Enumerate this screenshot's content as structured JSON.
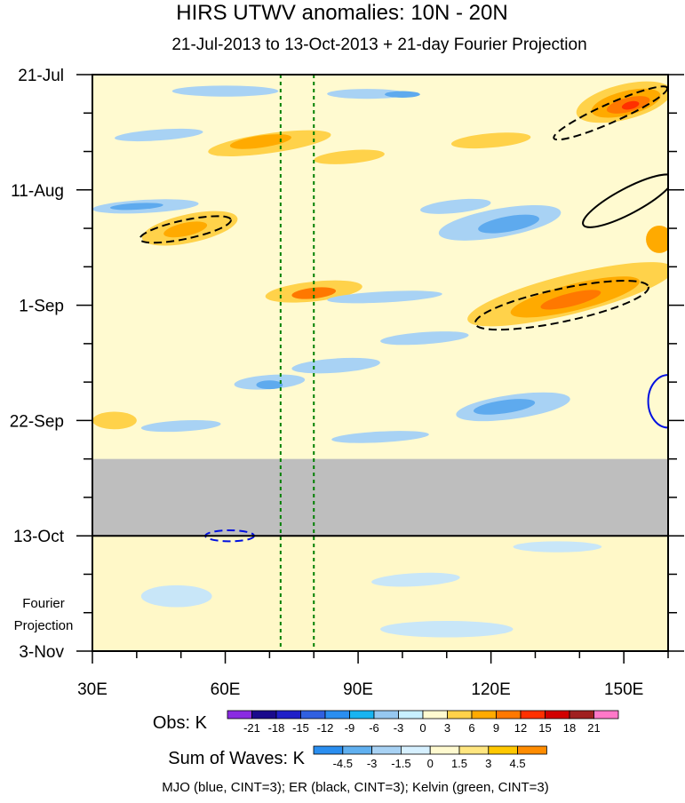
{
  "chart_data": {
    "type": "heatmap",
    "title": "HIRS UTWV anomalies: 10N - 20N",
    "subtitle": "21-Jul-2013 to 13-Oct-2013 + 21-day Fourier Projection",
    "x_axis": {
      "range": [
        30,
        160
      ],
      "ticks": [
        {
          "value": 30,
          "label": "30E"
        },
        {
          "value": 60,
          "label": "60E"
        },
        {
          "value": 90,
          "label": "90E"
        },
        {
          "value": 120,
          "label": "120E"
        },
        {
          "value": 150,
          "label": "150E"
        }
      ]
    },
    "y_axis": {
      "range_days": [
        0,
        105
      ],
      "ticks": [
        {
          "day": 0,
          "label": "21-Jul"
        },
        {
          "day": 21,
          "label": "11-Aug"
        },
        {
          "day": 42,
          "label": "1-Sep"
        },
        {
          "day": 63,
          "label": "22-Sep"
        },
        {
          "day": 84,
          "label": "13-Oct"
        },
        {
          "day": 105,
          "label": "3-Nov"
        }
      ],
      "minor_tick_every_days": 7,
      "forecast_label_lines": [
        "Fourier",
        "Projection"
      ]
    },
    "obs_end_day": 84,
    "missing_data_days": [
      70,
      84
    ],
    "kelvin_lines_lon": [
      72.5,
      80
    ],
    "fields": [
      {
        "kind": "fill",
        "level": 3,
        "lon": 70,
        "day": 12.5,
        "rlon": 14,
        "rday": 1.8,
        "rot": -8
      },
      {
        "kind": "fill",
        "level": 6,
        "lon": 68,
        "day": 12.2,
        "rlon": 7,
        "rday": 1.1,
        "rot": -8
      },
      {
        "kind": "fill",
        "level": 3,
        "lon": 52,
        "day": 28,
        "rlon": 11,
        "rday": 2.6,
        "rot": -12
      },
      {
        "kind": "fill",
        "level": 6,
        "lon": 51,
        "day": 28.2,
        "rlon": 5,
        "rday": 1.2,
        "rot": -12
      },
      {
        "kind": "fill",
        "level": 3,
        "lon": 80,
        "day": 39.5,
        "rlon": 11,
        "rday": 1.8,
        "rot": -6
      },
      {
        "kind": "fill",
        "level": 9,
        "lon": 80,
        "day": 39.8,
        "rlon": 5,
        "rday": 1.0,
        "rot": -6
      },
      {
        "kind": "fill",
        "level": 3,
        "lon": 138,
        "day": 40,
        "rlon": 24,
        "rday": 3.6,
        "rot": -14
      },
      {
        "kind": "fill",
        "level": 6,
        "lon": 139,
        "day": 40.5,
        "rlon": 15,
        "rday": 2.4,
        "rot": -14
      },
      {
        "kind": "fill",
        "level": 9,
        "lon": 138,
        "day": 41,
        "rlon": 7,
        "rday": 1.2,
        "rot": -14
      },
      {
        "kind": "fill",
        "level": 3,
        "lon": 150,
        "day": 5,
        "rlon": 11,
        "rday": 3.2,
        "rot": -14
      },
      {
        "kind": "fill",
        "level": 6,
        "lon": 150.5,
        "day": 5.2,
        "rlon": 8,
        "rday": 2.2,
        "rot": -14
      },
      {
        "kind": "fill",
        "level": 9,
        "lon": 151,
        "day": 5.5,
        "rlon": 5,
        "rday": 1.3,
        "rot": -14
      },
      {
        "kind": "fill",
        "level": 12,
        "lon": 151.5,
        "day": 5.6,
        "rlon": 2,
        "rday": 0.7,
        "rot": -14
      },
      {
        "kind": "fill",
        "level": 6,
        "lon": 158,
        "day": 30,
        "rlon": 3,
        "rday": 2.5,
        "rot": 0
      },
      {
        "kind": "fill",
        "level": 3,
        "lon": 35,
        "day": 63,
        "rlon": 5,
        "rday": 1.6,
        "rot": 0
      },
      {
        "kind": "fill",
        "level": 3,
        "lon": 88,
        "day": 15,
        "rlon": 8,
        "rday": 1.2,
        "rot": -5
      },
      {
        "kind": "fill",
        "level": 3,
        "lon": 120,
        "day": 12,
        "rlon": 9,
        "rday": 1.3,
        "rot": -5
      },
      {
        "kind": "fill",
        "level": -3,
        "lon": 60,
        "day": 3,
        "rlon": 12,
        "rday": 1.0,
        "rot": 0
      },
      {
        "kind": "fill",
        "level": -3,
        "lon": 92,
        "day": 3.5,
        "rlon": 9,
        "rday": 0.9,
        "rot": 0
      },
      {
        "kind": "fill",
        "level": -6,
        "lon": 100,
        "day": 3.6,
        "rlon": 4,
        "rday": 0.6,
        "rot": 0
      },
      {
        "kind": "fill",
        "level": -3,
        "lon": 45,
        "day": 11,
        "rlon": 10,
        "rday": 1.0,
        "rot": -4
      },
      {
        "kind": "fill",
        "level": -3,
        "lon": 42,
        "day": 24,
        "rlon": 12,
        "rday": 1.2,
        "rot": -3
      },
      {
        "kind": "fill",
        "level": -6,
        "lon": 40,
        "day": 24,
        "rlon": 6,
        "rday": 0.6,
        "rot": -3
      },
      {
        "kind": "fill",
        "level": -3,
        "lon": 122,
        "day": 27,
        "rlon": 14,
        "rday": 2.6,
        "rot": -10
      },
      {
        "kind": "fill",
        "level": -6,
        "lon": 124,
        "day": 27.2,
        "rlon": 7,
        "rday": 1.4,
        "rot": -10
      },
      {
        "kind": "fill",
        "level": -3,
        "lon": 112,
        "day": 24,
        "rlon": 8,
        "rday": 1.2,
        "rot": -6
      },
      {
        "kind": "fill",
        "level": -3,
        "lon": 96,
        "day": 40.5,
        "rlon": 13,
        "rday": 1.0,
        "rot": -3
      },
      {
        "kind": "fill",
        "level": -3,
        "lon": 105,
        "day": 48,
        "rlon": 10,
        "rday": 1.1,
        "rot": -4
      },
      {
        "kind": "fill",
        "level": -3,
        "lon": 85,
        "day": 53,
        "rlon": 10,
        "rday": 1.3,
        "rot": -4
      },
      {
        "kind": "fill",
        "level": -3,
        "lon": 70,
        "day": 56,
        "rlon": 8,
        "rday": 1.3,
        "rot": -4
      },
      {
        "kind": "fill",
        "level": -6,
        "lon": 70,
        "day": 56.5,
        "rlon": 3,
        "rday": 0.8,
        "rot": 0
      },
      {
        "kind": "fill",
        "level": -3,
        "lon": 125,
        "day": 60.5,
        "rlon": 13,
        "rday": 2.2,
        "rot": -8
      },
      {
        "kind": "fill",
        "level": -6,
        "lon": 123,
        "day": 60.5,
        "rlon": 7,
        "rday": 1.2,
        "rot": -8
      },
      {
        "kind": "fill",
        "level": -3,
        "lon": 50,
        "day": 64,
        "rlon": 9,
        "rday": 1.0,
        "rot": -3
      },
      {
        "kind": "fill",
        "level": -3,
        "lon": 95,
        "day": 66,
        "rlon": 11,
        "rday": 1.0,
        "rot": -3
      },
      {
        "kind": "fill",
        "level": -1.5,
        "lon": 49,
        "day": 95,
        "rlon": 8,
        "rday": 2.0,
        "rot": 0
      },
      {
        "kind": "fill",
        "level": -1.5,
        "lon": 103,
        "day": 92,
        "rlon": 10,
        "rday": 1.2,
        "rot": -3
      },
      {
        "kind": "fill",
        "level": -1.5,
        "lon": 135,
        "day": 86,
        "rlon": 10,
        "rday": 1.0,
        "rot": 0
      },
      {
        "kind": "fill",
        "level": -1.5,
        "lon": 110,
        "day": 101,
        "rlon": 15,
        "rday": 1.5,
        "rot": 0
      }
    ],
    "contours": [
      {
        "wave": "ER",
        "sign": "neg",
        "lon": 51,
        "day": 28.2,
        "rlon": 10.5,
        "rday": 1.7,
        "rot": -12
      },
      {
        "wave": "ER",
        "sign": "neg",
        "lon": 147,
        "day": 7,
        "rlon": 14,
        "rday": 1.7,
        "rot": -24
      },
      {
        "wave": "ER",
        "sign": "pos",
        "lon": 151,
        "day": 23,
        "rlon": 11.5,
        "rday": 2.3,
        "rot": -28
      },
      {
        "wave": "ER",
        "sign": "neg",
        "lon": 136,
        "day": 42,
        "rlon": 20,
        "rday": 3.0,
        "rot": -12
      },
      {
        "wave": "MJO",
        "sign": "pos",
        "lon": 160,
        "day": 59.5,
        "rlon": 4.5,
        "rday": 4.8,
        "rot": 0
      },
      {
        "wave": "MJO",
        "sign": "neg",
        "lon": 61,
        "day": 84,
        "rlon": 5.5,
        "rday": 1.0,
        "rot": 0
      }
    ],
    "obs_colorbar": {
      "label": "Obs: K",
      "colors": [
        "#8a2be2",
        "#1a0a8c",
        "#2020c8",
        "#3060e0",
        "#2a8ef0",
        "#18b4f0",
        "#96c8f0",
        "#c8f0ff",
        "#fffad0",
        "#ffd24a",
        "#ffaa00",
        "#ff7800",
        "#ff3000",
        "#d20000",
        "#a02020",
        "#ff78c8"
      ],
      "labels": [
        "-21",
        "-18",
        "-15",
        "-12",
        "-9",
        "-6",
        "-3",
        "0",
        "3",
        "6",
        "9",
        "12",
        "15",
        "18",
        "21"
      ]
    },
    "wave_colorbar": {
      "label": "Sum of Waves: K",
      "colors": [
        "#2a8ef0",
        "#60b0f0",
        "#a8d2f4",
        "#d6f0ff",
        "#fffad0",
        "#ffe680",
        "#ffc800",
        "#ff8c00"
      ],
      "labels": [
        "-4.5",
        "-3",
        "-1.5",
        "0",
        "1.5",
        "3",
        "4.5"
      ]
    },
    "caption": "MJO (blue, CINT=3); ER (black, CINT=3); Kelvin (green, CINT=3)",
    "colors": {
      "plot_bg": "#fffad0",
      "missing": "#bebebe",
      "mjo": "#0010e0",
      "er": "#000000",
      "kelvin": "#008000",
      "forecast_bg": "#fff8c8"
    }
  }
}
